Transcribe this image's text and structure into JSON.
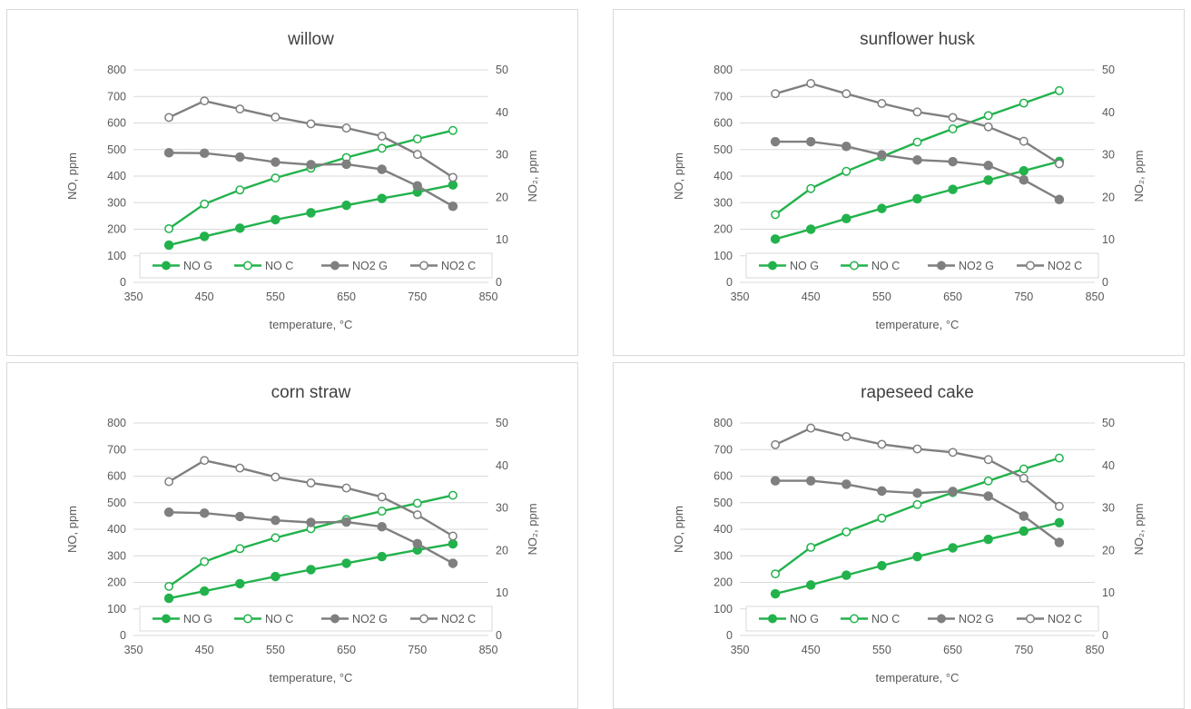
{
  "colors": {
    "green": "#22b24c",
    "gray": "#7f7f7f",
    "grid": "#d9d9d9",
    "legendBorder": "#d9d9d9"
  },
  "chart_data": [
    {
      "type": "line",
      "title": "willow",
      "xlabel": "temperature, °C",
      "ylabel": "NO, ppm",
      "y2label": "NO₂, ppm",
      "xlim": [
        350,
        850
      ],
      "xticks": [
        350,
        450,
        550,
        650,
        750,
        850
      ],
      "ylim": [
        0,
        800
      ],
      "yticks": [
        0,
        100,
        200,
        300,
        400,
        500,
        600,
        700,
        800
      ],
      "y2lim": [
        0,
        50
      ],
      "y2ticks": [
        0,
        10,
        20,
        30,
        40,
        50
      ],
      "grid": "horizontal",
      "legend": "bottom",
      "x": [
        400,
        450,
        500,
        550,
        600,
        650,
        700,
        750,
        800
      ],
      "series": [
        {
          "name": "NO G",
          "axis": "left",
          "marker": "filled",
          "color": "green",
          "values": [
            140,
            173,
            204,
            236,
            262,
            290,
            316,
            340,
            367
          ]
        },
        {
          "name": "NO C",
          "axis": "left",
          "marker": "open",
          "color": "green",
          "values": [
            202,
            295,
            348,
            393,
            430,
            470,
            505,
            540,
            572
          ]
        },
        {
          "name": "NO2 G",
          "axis": "right",
          "marker": "filled",
          "color": "gray",
          "values": [
            30.5,
            30.4,
            29.5,
            28.3,
            27.7,
            27.8,
            26.6,
            22.7,
            17.9
          ]
        },
        {
          "name": "NO2 C",
          "axis": "right",
          "marker": "open",
          "color": "gray",
          "values": [
            38.8,
            42.7,
            40.8,
            38.9,
            37.3,
            36.3,
            34.4,
            30.1,
            24.7
          ]
        }
      ]
    },
    {
      "type": "line",
      "title": "sunflower husk",
      "xlabel": "temperature, °C",
      "ylabel": "NO, ppm",
      "y2label": "NO₂, ppm",
      "xlim": [
        350,
        850
      ],
      "xticks": [
        350,
        450,
        550,
        650,
        750,
        850
      ],
      "ylim": [
        0,
        800
      ],
      "yticks": [
        0,
        100,
        200,
        300,
        400,
        500,
        600,
        700,
        800
      ],
      "y2lim": [
        0,
        50
      ],
      "y2ticks": [
        0,
        10,
        20,
        30,
        40,
        50
      ],
      "grid": "horizontal",
      "legend": "bottom",
      "x": [
        400,
        450,
        500,
        550,
        600,
        650,
        700,
        750,
        800
      ],
      "series": [
        {
          "name": "NO G",
          "axis": "left",
          "marker": "filled",
          "color": "green",
          "values": [
            163,
            200,
            240,
            278,
            315,
            350,
            385,
            420,
            455
          ]
        },
        {
          "name": "NO C",
          "axis": "left",
          "marker": "open",
          "color": "green",
          "values": [
            255,
            353,
            418,
            473,
            528,
            578,
            628,
            675,
            722
          ]
        },
        {
          "name": "NO2 G",
          "axis": "right",
          "marker": "filled",
          "color": "gray",
          "values": [
            33.1,
            33.1,
            32.0,
            30.0,
            28.8,
            28.4,
            27.5,
            24.1,
            19.5
          ]
        },
        {
          "name": "NO2 C",
          "axis": "right",
          "marker": "open",
          "color": "gray",
          "values": [
            44.4,
            46.8,
            44.4,
            42.1,
            40.1,
            38.8,
            36.6,
            33.2,
            27.9
          ]
        }
      ]
    },
    {
      "type": "line",
      "title": "corn straw",
      "xlabel": "temperature, °C",
      "ylabel": "NO, ppm",
      "y2label": "NO₂, ppm",
      "xlim": [
        350,
        850
      ],
      "xticks": [
        350,
        450,
        550,
        650,
        750,
        850
      ],
      "ylim": [
        0,
        800
      ],
      "yticks": [
        0,
        100,
        200,
        300,
        400,
        500,
        600,
        700,
        800
      ],
      "y2lim": [
        0,
        50
      ],
      "y2ticks": [
        0,
        10,
        20,
        30,
        40,
        50
      ],
      "grid": "horizontal",
      "legend": "bottom",
      "x": [
        400,
        450,
        500,
        550,
        600,
        650,
        700,
        750,
        800
      ],
      "series": [
        {
          "name": "NO G",
          "axis": "left",
          "marker": "filled",
          "color": "green",
          "values": [
            140,
            167,
            195,
            222,
            248,
            272,
            297,
            322,
            345
          ]
        },
        {
          "name": "NO C",
          "axis": "left",
          "marker": "open",
          "color": "green",
          "values": [
            185,
            278,
            327,
            368,
            402,
            437,
            468,
            498,
            528
          ]
        },
        {
          "name": "NO2 G",
          "axis": "right",
          "marker": "filled",
          "color": "gray",
          "values": [
            29.0,
            28.8,
            28.0,
            27.1,
            26.6,
            26.7,
            25.6,
            21.6,
            17.0
          ]
        },
        {
          "name": "NO2 C",
          "axis": "right",
          "marker": "open",
          "color": "gray",
          "values": [
            36.2,
            41.2,
            39.4,
            37.3,
            35.9,
            34.7,
            32.6,
            28.4,
            23.4
          ]
        }
      ]
    },
    {
      "type": "line",
      "title": "rapeseed cake",
      "xlabel": "temperature, °C",
      "ylabel": "NO, ppm",
      "y2label": "NO₂, ppm",
      "xlim": [
        350,
        850
      ],
      "xticks": [
        350,
        450,
        550,
        650,
        750,
        850
      ],
      "ylim": [
        0,
        800
      ],
      "yticks": [
        0,
        100,
        200,
        300,
        400,
        500,
        600,
        700,
        800
      ],
      "y2lim": [
        0,
        50
      ],
      "y2ticks": [
        0,
        10,
        20,
        30,
        40,
        50
      ],
      "grid": "horizontal",
      "legend": "bottom",
      "x": [
        400,
        450,
        500,
        550,
        600,
        650,
        700,
        750,
        800
      ],
      "series": [
        {
          "name": "NO G",
          "axis": "left",
          "marker": "filled",
          "color": "green",
          "values": [
            157,
            190,
            227,
            263,
            297,
            330,
            362,
            393,
            425
          ]
        },
        {
          "name": "NO C",
          "axis": "left",
          "marker": "open",
          "color": "green",
          "values": [
            232,
            332,
            390,
            442,
            493,
            538,
            582,
            627,
            668
          ]
        },
        {
          "name": "NO2 G",
          "axis": "right",
          "marker": "filled",
          "color": "gray",
          "values": [
            36.4,
            36.4,
            35.6,
            34.0,
            33.5,
            33.9,
            32.8,
            28.1,
            21.9
          ]
        },
        {
          "name": "NO2 C",
          "axis": "right",
          "marker": "open",
          "color": "gray",
          "values": [
            44.9,
            48.8,
            46.8,
            45.0,
            43.9,
            43.1,
            41.4,
            37.0,
            30.4
          ]
        }
      ]
    }
  ]
}
